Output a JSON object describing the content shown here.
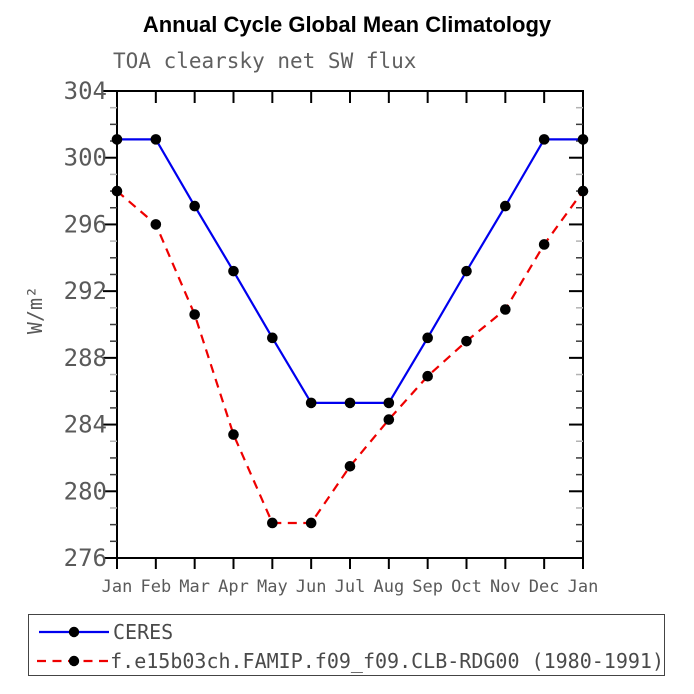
{
  "title": "Annual Cycle Global Mean Climatology",
  "subtitle": "TOA clearsky net SW flux",
  "legend": {
    "entries": [
      {
        "label": "CERES",
        "color": "#0000ee",
        "style": "solid",
        "marker": "black-dot"
      },
      {
        "label": "f.e15b03ch.FAMIP.f09_f09.CLB-RDG00 (1980-1991)",
        "color": "#ee0000",
        "style": "dashed",
        "marker": "black-dot"
      }
    ]
  },
  "chart_data": {
    "type": "line",
    "title": "Annual Cycle Global Mean Climatology",
    "subtitle": "TOA clearsky net SW flux",
    "xlabel": "",
    "ylabel": "W/m²",
    "categories": [
      "Jan",
      "Feb",
      "Mar",
      "Apr",
      "May",
      "Jun",
      "Jul",
      "Aug",
      "Sep",
      "Oct",
      "Nov",
      "Dec",
      "Jan"
    ],
    "series": [
      {
        "name": "CERES",
        "color": "#0000ee",
        "line_style": "solid",
        "marker": "black-dot",
        "values": [
          301.1,
          301.1,
          297.1,
          293.2,
          289.2,
          285.3,
          285.3,
          285.3,
          289.2,
          293.2,
          297.1,
          301.1,
          301.1
        ]
      },
      {
        "name": "f.e15b03ch.FAMIP.f09_f09.CLB-RDG00 (1980-1991)",
        "color": "#ee0000",
        "line_style": "dashed",
        "marker": "black-dot",
        "values": [
          298.0,
          296.0,
          290.6,
          283.4,
          278.1,
          278.1,
          281.5,
          284.3,
          286.9,
          289.0,
          290.9,
          294.8,
          298.0
        ]
      }
    ],
    "ylim": [
      276,
      304
    ],
    "ytick_major": 4,
    "ytick_minor": 1,
    "ytick_labels": [
      "276",
      "280",
      "284",
      "288",
      "292",
      "296",
      "300",
      "304"
    ],
    "grid": false,
    "legend_position": "bottom-left-box"
  }
}
